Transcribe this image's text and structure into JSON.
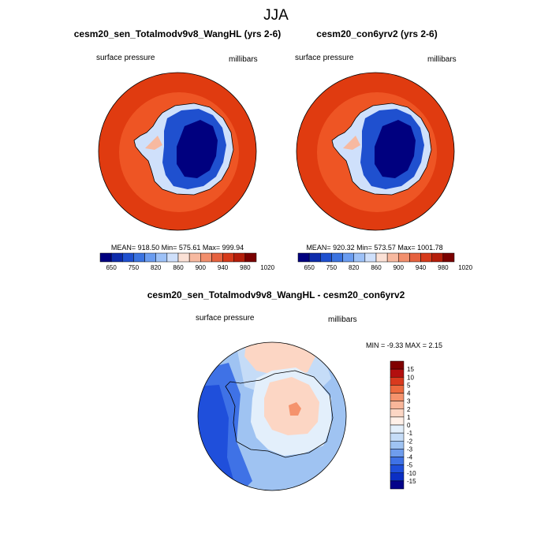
{
  "figure": {
    "title": "JJA"
  },
  "chart_data": [
    {
      "type": "contour-map",
      "projection": "south-polar-stereographic",
      "title": "cesm20_sen_Totalmodv9v8_WangHL (yrs 2-6)",
      "left_label": "surface pressure",
      "right_label": "millibars",
      "stats": {
        "mean": "918.50",
        "min": "575.61",
        "max": "999.94"
      },
      "stats_text": "MEAN= 918.50  Min= 575.61  Max= 999.94",
      "colorbar": {
        "orientation": "horizontal",
        "colors": [
          "#00007f",
          "#0d2bab",
          "#1f50cf",
          "#3b73e0",
          "#6a9cf0",
          "#9dc1f7",
          "#cfe0fb",
          "#fbe1d6",
          "#f7b9a0",
          "#f28f6d",
          "#e6623f",
          "#d63a1a",
          "#b51e0a",
          "#7a0000"
        ],
        "tick_labels": [
          "650",
          "750",
          "820",
          "860",
          "900",
          "940",
          "980",
          "1020"
        ]
      }
    },
    {
      "type": "contour-map",
      "projection": "south-polar-stereographic",
      "title": "cesm20_con6yrv2 (yrs 2-6)",
      "left_label": "surface pressure",
      "right_label": "millibars",
      "stats": {
        "mean": "920.32",
        "min": "573.57",
        "max": "1001.78"
      },
      "stats_text": "MEAN= 920.32  Min= 573.57  Max= 1001.78",
      "colorbar": {
        "orientation": "horizontal",
        "colors": [
          "#00007f",
          "#0d2bab",
          "#1f50cf",
          "#3b73e0",
          "#6a9cf0",
          "#9dc1f7",
          "#cfe0fb",
          "#fbe1d6",
          "#f7b9a0",
          "#f28f6d",
          "#e6623f",
          "#d63a1a",
          "#b51e0a",
          "#7a0000"
        ],
        "tick_labels": [
          "650",
          "750",
          "820",
          "860",
          "900",
          "940",
          "980",
          "1020"
        ]
      }
    },
    {
      "type": "contour-map",
      "projection": "south-polar-stereographic",
      "title": "cesm20_sen_Totalmodv9v8_WangHL - cesm20_con6yrv2",
      "left_label": "surface pressure",
      "right_label": "millibars",
      "stats": {
        "min": "-9.33",
        "max": "2.15"
      },
      "stats_text": "MIN =  -9.33 MAX =   2.15",
      "colorbar": {
        "orientation": "vertical",
        "colors": [
          "#800000",
          "#b30f0f",
          "#d93a1e",
          "#ed6a3f",
          "#f5936d",
          "#f9b69a",
          "#fcd6c4",
          "#fff0e8",
          "#e3effb",
          "#c5dcf7",
          "#9fc3f2",
          "#6f9ded",
          "#3f72e6",
          "#1f4fdb",
          "#0b2fc4",
          "#03038a"
        ],
        "tick_labels": [
          "15",
          "10",
          "5",
          "4",
          "3",
          "2",
          "1",
          "0",
          "-1",
          "-2",
          "-3",
          "-4",
          "-5",
          "-10",
          "-15"
        ]
      }
    }
  ]
}
